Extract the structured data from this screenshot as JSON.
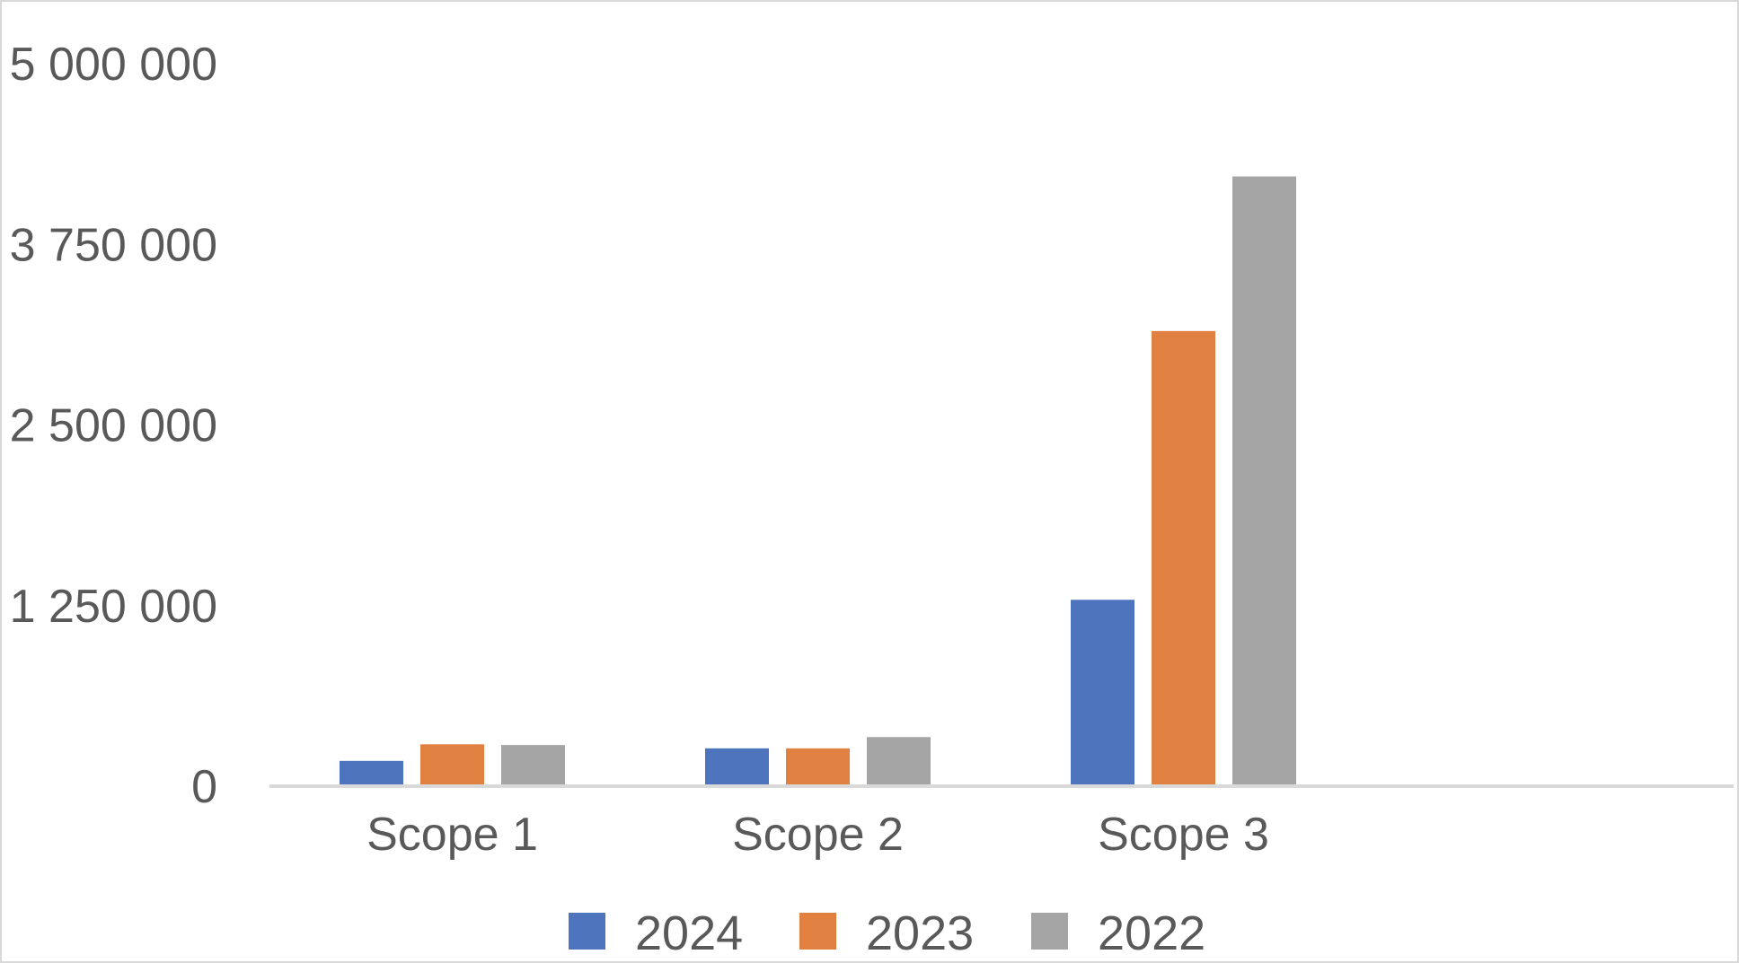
{
  "chart_data": {
    "type": "bar",
    "categories": [
      "Scope 1",
      "Scope 2",
      "Scope 3"
    ],
    "series": [
      {
        "name": "2024",
        "color": "#4e74be",
        "values": [
          175000,
          262000,
          1290000
        ]
      },
      {
        "name": "2023",
        "color": "#e08142",
        "values": [
          290000,
          262000,
          3150000
        ]
      },
      {
        "name": "2022",
        "color": "#a5a5a5",
        "values": [
          285000,
          340000,
          4220000
        ]
      }
    ],
    "ylim": [
      0,
      5000000
    ],
    "yticks": [
      0,
      1250000,
      2500000,
      3750000,
      5000000
    ],
    "ytick_labels": [
      "0",
      "1 250 000",
      "2 500 000",
      "3 750 000",
      "5 000 000"
    ],
    "legend_position": "bottom",
    "grid": false
  }
}
